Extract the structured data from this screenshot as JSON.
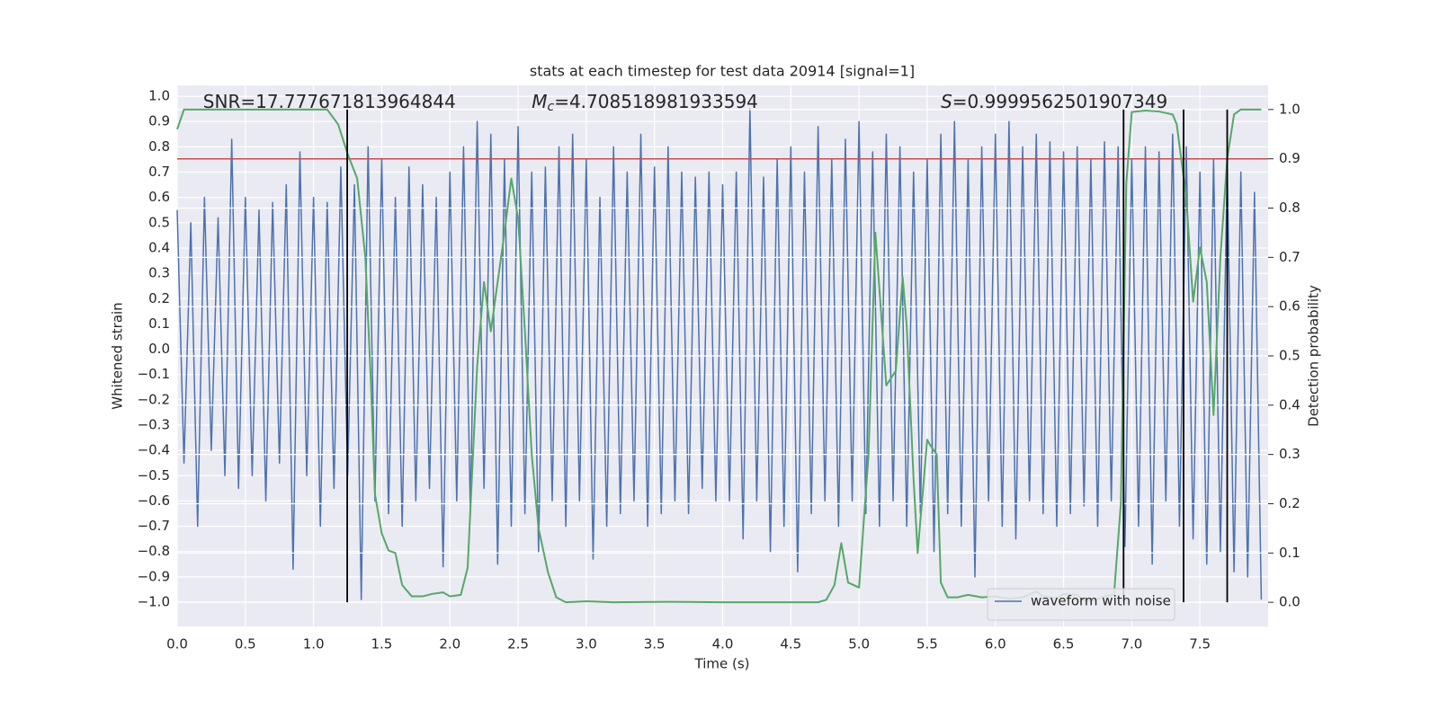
{
  "chart_data": {
    "type": "line",
    "title": "stats at each timestep for test data 20914 [signal=1]",
    "xlabel": "Time (s)",
    "ylabel": "Whitened strain",
    "y2label": "Detection probability",
    "annotations": [
      {
        "label": "SNR",
        "text": "=17.777671813964844",
        "x": 0.19
      },
      {
        "label": "M",
        "sub": "c",
        "text": "=4.708518981933594",
        "x": 2.6
      },
      {
        "label": "S",
        "text": "=0.9999562501907349",
        "x": 5.6
      }
    ],
    "xlim": [
      0,
      8
    ],
    "ylim": [
      -1.096,
      1.043
    ],
    "y2lim": [
      -0.049,
      1.049
    ],
    "xticks": [
      {
        "value": 0,
        "label": "0.0"
      },
      {
        "value": 0.5,
        "label": "0.5"
      },
      {
        "value": 1,
        "label": "1.0"
      },
      {
        "value": 1.5,
        "label": "1.5"
      },
      {
        "value": 2,
        "label": "2.0"
      },
      {
        "value": 2.5,
        "label": "2.5"
      },
      {
        "value": 3,
        "label": "3.0"
      },
      {
        "value": 3.5,
        "label": "3.5"
      },
      {
        "value": 4,
        "label": "4.0"
      },
      {
        "value": 4.5,
        "label": "4.5"
      },
      {
        "value": 5,
        "label": "5.0"
      },
      {
        "value": 5.5,
        "label": "5.5"
      },
      {
        "value": 6,
        "label": "6.0"
      },
      {
        "value": 6.5,
        "label": "6.5"
      },
      {
        "value": 7,
        "label": "7.0"
      },
      {
        "value": 7.5,
        "label": "7.5"
      }
    ],
    "yticks": [
      {
        "value": 1,
        "label": "1.0"
      },
      {
        "value": 0.9,
        "label": "0.9"
      },
      {
        "value": 0.8,
        "label": "0.8"
      },
      {
        "value": 0.7,
        "label": "0.7"
      },
      {
        "value": 0.6,
        "label": "0.6"
      },
      {
        "value": 0.5,
        "label": "0.5"
      },
      {
        "value": 0.4,
        "label": "0.4"
      },
      {
        "value": 0.3,
        "label": "0.3"
      },
      {
        "value": 0.2,
        "label": "0.2"
      },
      {
        "value": 0.1,
        "label": "0.1"
      },
      {
        "value": 0,
        "label": "0.0"
      },
      {
        "value": -0.1,
        "label": "−0.1"
      },
      {
        "value": -0.2,
        "label": "−0.2"
      },
      {
        "value": -0.3,
        "label": "−0.3"
      },
      {
        "value": -0.4,
        "label": "−0.4"
      },
      {
        "value": -0.5,
        "label": "−0.5"
      },
      {
        "value": -0.6,
        "label": "−0.6"
      },
      {
        "value": -0.7,
        "label": "−0.7"
      },
      {
        "value": -0.8,
        "label": "−0.8"
      },
      {
        "value": -0.9,
        "label": "−0.9"
      },
      {
        "value": -1,
        "label": "−1.0"
      }
    ],
    "y2ticks": [
      {
        "value": 1,
        "label": "1.0"
      },
      {
        "value": 0.9,
        "label": "0.9"
      },
      {
        "value": 0.8,
        "label": "0.8"
      },
      {
        "value": 0.7,
        "label": "0.7"
      },
      {
        "value": 0.6,
        "label": "0.6"
      },
      {
        "value": 0.5,
        "label": "0.5"
      },
      {
        "value": 0.4,
        "label": "0.4"
      },
      {
        "value": 0.3,
        "label": "0.3"
      },
      {
        "value": 0.2,
        "label": "0.2"
      },
      {
        "value": 0.1,
        "label": "0.1"
      },
      {
        "value": 0,
        "label": "0.0"
      }
    ],
    "grid": true,
    "legend": "lower right",
    "series": [
      {
        "name": "waveform with noise",
        "color": "#4c72b0",
        "x": [
          0,
          0.05,
          0.1,
          0.15,
          0.2,
          0.25,
          0.3,
          0.35,
          0.4,
          0.45,
          0.5,
          0.55,
          0.6,
          0.65,
          0.7,
          0.75,
          0.8,
          0.85,
          0.9,
          0.95,
          1,
          1.05,
          1.1,
          1.15,
          1.2,
          1.25,
          1.3,
          1.35,
          1.4,
          1.45,
          1.5,
          1.55,
          1.6,
          1.65,
          1.7,
          1.75,
          1.8,
          1.85,
          1.9,
          1.95,
          2,
          2.05,
          2.1,
          2.15,
          2.2,
          2.25,
          2.3,
          2.35,
          2.4,
          2.45,
          2.5,
          2.55,
          2.6,
          2.65,
          2.7,
          2.75,
          2.8,
          2.85,
          2.9,
          2.95,
          3,
          3.05,
          3.1,
          3.15,
          3.2,
          3.25,
          3.3,
          3.35,
          3.4,
          3.45,
          3.5,
          3.55,
          3.6,
          3.65,
          3.7,
          3.75,
          3.8,
          3.85,
          3.9,
          3.95,
          4,
          4.05,
          4.1,
          4.15,
          4.2,
          4.25,
          4.3,
          4.35,
          4.4,
          4.45,
          4.5,
          4.55,
          4.6,
          4.65,
          4.7,
          4.75,
          4.8,
          4.85,
          4.9,
          4.95,
          5,
          5.05,
          5.1,
          5.15,
          5.2,
          5.25,
          5.3,
          5.35,
          5.4,
          5.45,
          5.5,
          5.55,
          5.6,
          5.65,
          5.7,
          5.75,
          5.8,
          5.85,
          5.9,
          5.95,
          6,
          6.05,
          6.1,
          6.15,
          6.2,
          6.25,
          6.3,
          6.35,
          6.4,
          6.45,
          6.5,
          6.55,
          6.6,
          6.65,
          6.7,
          6.75,
          6.8,
          6.85,
          6.9,
          6.95,
          7,
          7.05,
          7.1,
          7.15,
          7.2,
          7.25,
          7.3,
          7.35,
          7.4,
          7.45,
          7.5,
          7.55,
          7.6,
          7.65,
          7.7,
          7.75,
          7.8,
          7.85,
          7.9,
          7.95
        ],
        "values": [
          0.55,
          -0.45,
          0.5,
          -0.7,
          0.6,
          -0.4,
          0.52,
          -0.5,
          0.83,
          -0.55,
          0.6,
          -0.5,
          0.55,
          -0.6,
          0.58,
          -0.45,
          0.65,
          -0.87,
          0.78,
          -0.5,
          0.6,
          -0.7,
          0.58,
          -0.55,
          0.72,
          -0.5,
          0.65,
          -0.99,
          0.8,
          -0.6,
          0.75,
          -0.65,
          0.6,
          -0.7,
          0.72,
          -0.6,
          0.65,
          -0.55,
          0.6,
          -0.86,
          0.7,
          -0.6,
          0.8,
          -0.65,
          0.9,
          -0.55,
          0.85,
          -0.85,
          0.75,
          -0.7,
          0.88,
          -0.65,
          0.7,
          -0.8,
          0.72,
          -0.6,
          0.8,
          -0.7,
          0.85,
          -0.6,
          0.75,
          -0.83,
          0.6,
          -0.7,
          0.8,
          -0.65,
          0.7,
          -0.6,
          0.85,
          -0.7,
          0.72,
          -0.65,
          0.8,
          -0.6,
          0.7,
          -0.65,
          0.68,
          -0.55,
          0.7,
          -0.6,
          0.65,
          -0.6,
          0.7,
          -0.75,
          0.95,
          -0.6,
          0.68,
          -0.8,
          0.75,
          -0.7,
          0.8,
          -0.88,
          0.7,
          -0.65,
          0.88,
          -0.6,
          0.75,
          -0.7,
          0.83,
          -0.6,
          0.9,
          -0.65,
          0.78,
          -0.7,
          0.85,
          -0.6,
          0.8,
          -0.7,
          0.7,
          -0.65,
          0.75,
          -0.8,
          0.85,
          -0.65,
          0.9,
          -0.7,
          0.75,
          -0.9,
          0.8,
          -0.6,
          0.85,
          -0.7,
          0.9,
          -0.75,
          0.8,
          -0.6,
          0.85,
          -0.65,
          0.82,
          -0.7,
          0.78,
          -0.65,
          0.8,
          -0.62,
          0.75,
          -0.7,
          0.82,
          -0.6,
          0.8,
          -0.78,
          0.75,
          -0.7,
          0.8,
          -0.85,
          0.78,
          -0.6,
          0.85,
          -0.7,
          0.8,
          -0.75,
          0.7,
          -0.85,
          0.75,
          -0.8,
          0.72,
          -0.88,
          0.7,
          -0.9,
          0.62,
          -0.99
        ]
      },
      {
        "color": "#55a868",
        "axis": "y2",
        "x": [
          0,
          0.05,
          0.5,
          1.1,
          1.18,
          1.25,
          1.32,
          1.38,
          1.42,
          1.45,
          1.5,
          1.55,
          1.6,
          1.65,
          1.72,
          1.8,
          1.87,
          1.95,
          2,
          2.08,
          2.13,
          2.2,
          2.25,
          2.3,
          2.4,
          2.45,
          2.5,
          2.55,
          2.6,
          2.65,
          2.72,
          2.78,
          2.85,
          3,
          3.2,
          3.6,
          4,
          4.4,
          4.7,
          4.76,
          4.82,
          4.87,
          4.92,
          5,
          5.07,
          5.12,
          5.2,
          5.27,
          5.32,
          5.35,
          5.4,
          5.43,
          5.5,
          5.52,
          5.57,
          5.6,
          5.65,
          5.72,
          5.8,
          5.9,
          6,
          6.1,
          6.2,
          6.3,
          6.35,
          6.45,
          6.5,
          6.6,
          6.65,
          6.72,
          6.8,
          6.87,
          6.92,
          6.96,
          7,
          7.1,
          7.2,
          7.3,
          7.33,
          7.4,
          7.45,
          7.5,
          7.55,
          7.6,
          7.65,
          7.7,
          7.75,
          7.8,
          7.95
        ],
        "values": [
          0.96,
          1,
          1,
          1,
          0.97,
          0.91,
          0.86,
          0.7,
          0.45,
          0.22,
          0.14,
          0.105,
          0.1,
          0.035,
          0.012,
          0.012,
          0.017,
          0.02,
          0.012,
          0.015,
          0.07,
          0.48,
          0.65,
          0.55,
          0.75,
          0.86,
          0.78,
          0.55,
          0.3,
          0.15,
          0.06,
          0.01,
          0,
          0.002,
          0,
          0.001,
          0,
          0,
          0,
          0.005,
          0.035,
          0.12,
          0.04,
          0.03,
          0.3,
          0.75,
          0.44,
          0.47,
          0.66,
          0.56,
          0.25,
          0.1,
          0.33,
          0.32,
          0.3,
          0.04,
          0.01,
          0.01,
          0.015,
          0.01,
          0.012,
          0.007,
          0.01,
          0.022,
          0.012,
          0.008,
          0.017,
          0.015,
          0.003,
          0.003,
          0.012,
          0.015,
          0.2,
          0.85,
          0.995,
          0.998,
          0.996,
          0.99,
          0.97,
          0.82,
          0.61,
          0.72,
          0.65,
          0.38,
          0.7,
          0.9,
          0.99,
          1,
          1
        ]
      }
    ],
    "hlines": [
      {
        "y": 0.9,
        "axis": "y2",
        "color": "#c44e52"
      }
    ],
    "vlines": {
      "x": [
        1.247,
        6.94,
        7.38,
        7.7
      ],
      "axis": "y2",
      "range": [
        0,
        1
      ],
      "color": "#000000"
    }
  }
}
